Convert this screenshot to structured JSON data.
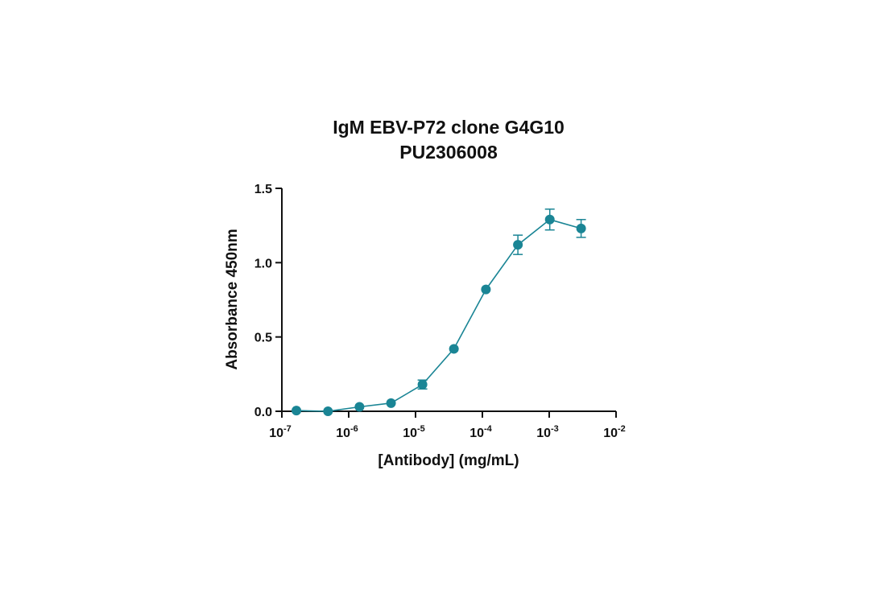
{
  "chart_data": {
    "type": "scatter",
    "title": "IgM EBV-P72 clone G4G10",
    "subtitle": "PU2306008",
    "xlabel": "[Antibody] (mg/mL)",
    "ylabel": "Absorbance 450nm",
    "x_scale": "log",
    "xlim": [
      1e-07,
      0.01
    ],
    "ylim": [
      0,
      1.5
    ],
    "x_ticks": [
      {
        "base": "10",
        "exp": "-7"
      },
      {
        "base": "10",
        "exp": "-6"
      },
      {
        "base": "10",
        "exp": "-5"
      },
      {
        "base": "10",
        "exp": "-4"
      },
      {
        "base": "10",
        "exp": "-3"
      },
      {
        "base": "10",
        "exp": "-2"
      }
    ],
    "y_ticks": [
      "0.0",
      "0.5",
      "1.0",
      "1.5"
    ],
    "grid": false,
    "legend": "none",
    "series_color": "#1a8595",
    "points": [
      {
        "x": 1.65e-07,
        "y": 0.005,
        "err": 0.0
      },
      {
        "x": 4.9e-07,
        "y": 0.0,
        "err": 0.0
      },
      {
        "x": 1.45e-06,
        "y": 0.03,
        "err": 0.0
      },
      {
        "x": 4.3e-06,
        "y": 0.055,
        "err": 0.0
      },
      {
        "x": 1.27e-05,
        "y": 0.18,
        "err": 0.03
      },
      {
        "x": 3.75e-05,
        "y": 0.42,
        "err": 0.0
      },
      {
        "x": 0.000113,
        "y": 0.82,
        "err": 0.0
      },
      {
        "x": 0.00034,
        "y": 1.12,
        "err": 0.065
      },
      {
        "x": 0.00102,
        "y": 1.29,
        "err": 0.07
      },
      {
        "x": 0.003,
        "y": 1.23,
        "err": 0.06
      }
    ]
  }
}
